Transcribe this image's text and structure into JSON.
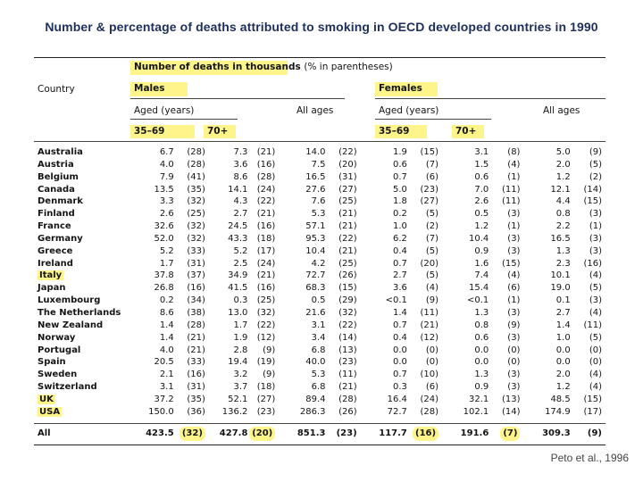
{
  "title": "Number & percentage of deaths attributed to smoking in OECD developed countries in 1990",
  "header": {
    "number_label": "Number of deaths in thousands",
    "pct_note": "(% in parentheses)",
    "country": "Country",
    "males": "Males",
    "females": "Females",
    "aged_years": "Aged (years)",
    "all_ages": "All ages",
    "age_35_69": "35–69",
    "age_70": "70+"
  },
  "columns": [
    "35-69 males",
    "70+ males",
    "All ages males",
    "35-69 females",
    "70+ females",
    "All ages females"
  ],
  "rows": [
    {
      "country": "Australia",
      "v": [
        "6.7",
        "(28)",
        "7.3",
        "(21)",
        "14.0",
        "(22)",
        "1.9",
        "(15)",
        "3.1",
        "(8)",
        "5.0",
        "(9)"
      ]
    },
    {
      "country": "Austria",
      "v": [
        "4.0",
        "(28)",
        "3.6",
        "(16)",
        "7.5",
        "(20)",
        "0.6",
        "(7)",
        "1.5",
        "(4)",
        "2.0",
        "(5)"
      ]
    },
    {
      "country": "Belgium",
      "v": [
        "7.9",
        "(41)",
        "8.6",
        "(28)",
        "16.5",
        "(31)",
        "0.7",
        "(6)",
        "0.6",
        "(1)",
        "1.2",
        "(2)"
      ]
    },
    {
      "country": "Canada",
      "v": [
        "13.5",
        "(35)",
        "14.1",
        "(24)",
        "27.6",
        "(27)",
        "5.0",
        "(23)",
        "7.0",
        "(11)",
        "12.1",
        "(14)"
      ]
    },
    {
      "country": "Denmark",
      "v": [
        "3.3",
        "(32)",
        "4.3",
        "(22)",
        "7.6",
        "(25)",
        "1.8",
        "(27)",
        "2.6",
        "(11)",
        "4.4",
        "(15)"
      ]
    },
    {
      "country": "Finland",
      "v": [
        "2.6",
        "(25)",
        "2.7",
        "(21)",
        "5.3",
        "(21)",
        "0.2",
        "(5)",
        "0.5",
        "(3)",
        "0.8",
        "(3)"
      ]
    },
    {
      "country": "France",
      "v": [
        "32.6",
        "(32)",
        "24.5",
        "(16)",
        "57.1",
        "(21)",
        "1.0",
        "(2)",
        "1.2",
        "(1)",
        "2.2",
        "(1)"
      ]
    },
    {
      "country": "Germany",
      "v": [
        "52.0",
        "(32)",
        "43.3",
        "(18)",
        "95.3",
        "(22)",
        "6.2",
        "(7)",
        "10.4",
        "(3)",
        "16.5",
        "(3)"
      ]
    },
    {
      "country": "Greece",
      "v": [
        "5.2",
        "(33)",
        "5.2",
        "(17)",
        "10.4",
        "(21)",
        "0.4",
        "(5)",
        "0.9",
        "(3)",
        "1.3",
        "(3)"
      ]
    },
    {
      "country": "Ireland",
      "v": [
        "1.7",
        "(31)",
        "2.5",
        "(24)",
        "4.2",
        "(25)",
        "0.7",
        "(20)",
        "1.6",
        "(15)",
        "2.3",
        "(16)"
      ]
    },
    {
      "country": "Italy",
      "v": [
        "37.8",
        "(37)",
        "34.9",
        "(21)",
        "72.7",
        "(26)",
        "2.7",
        "(5)",
        "7.4",
        "(4)",
        "10.1",
        "(4)"
      ]
    },
    {
      "country": "Japan",
      "v": [
        "26.8",
        "(16)",
        "41.5",
        "(16)",
        "68.3",
        "(15)",
        "3.6",
        "(4)",
        "15.4",
        "(6)",
        "19.0",
        "(5)"
      ]
    },
    {
      "country": "Luxembourg",
      "v": [
        "0.2",
        "(34)",
        "0.3",
        "(25)",
        "0.5",
        "(29)",
        "<0.1",
        "(9)",
        "<0.1",
        "(1)",
        "0.1",
        "(3)"
      ]
    },
    {
      "country": "The Netherlands",
      "v": [
        "8.6",
        "(38)",
        "13.0",
        "(32)",
        "21.6",
        "(32)",
        "1.4",
        "(11)",
        "1.3",
        "(3)",
        "2.7",
        "(4)"
      ]
    },
    {
      "country": "New Zealand",
      "v": [
        "1.4",
        "(28)",
        "1.7",
        "(22)",
        "3.1",
        "(22)",
        "0.7",
        "(21)",
        "0.8",
        "(9)",
        "1.4",
        "(11)"
      ]
    },
    {
      "country": "Norway",
      "v": [
        "1.4",
        "(21)",
        "1.9",
        "(12)",
        "3.4",
        "(14)",
        "0.4",
        "(12)",
        "0.6",
        "(3)",
        "1.0",
        "(5)"
      ]
    },
    {
      "country": "Portugal",
      "v": [
        "4.0",
        "(21)",
        "2.8",
        "(9)",
        "6.8",
        "(13)",
        "0.0",
        "(0)",
        "0.0",
        "(0)",
        "0.0",
        "(0)"
      ]
    },
    {
      "country": "Spain",
      "v": [
        "20.5",
        "(33)",
        "19.4",
        "(19)",
        "40.0",
        "(23)",
        "0.0",
        "(0)",
        "0.0",
        "(0)",
        "0.0",
        "(0)"
      ]
    },
    {
      "country": "Sweden",
      "v": [
        "2.1",
        "(16)",
        "3.2",
        "(9)",
        "5.3",
        "(11)",
        "0.7",
        "(10)",
        "1.3",
        "(3)",
        "2.0",
        "(4)"
      ]
    },
    {
      "country": "Switzerland",
      "v": [
        "3.1",
        "(31)",
        "3.7",
        "(18)",
        "6.8",
        "(21)",
        "0.3",
        "(6)",
        "0.9",
        "(3)",
        "1.2",
        "(4)"
      ]
    },
    {
      "country": "UK",
      "v": [
        "37.2",
        "(35)",
        "52.1",
        "(27)",
        "89.4",
        "(28)",
        "16.4",
        "(24)",
        "32.1",
        "(13)",
        "48.5",
        "(15)"
      ]
    },
    {
      "country": "USA",
      "v": [
        "150.0",
        "(36)",
        "136.2",
        "(23)",
        "286.3",
        "(26)",
        "72.7",
        "(28)",
        "102.1",
        "(14)",
        "174.9",
        "(17)"
      ]
    }
  ],
  "highlighted_countries": [
    "Italy",
    "UK",
    "USA"
  ],
  "all_row": {
    "country": "All",
    "v": [
      "423.5",
      "(32)",
      "427.8",
      "(20)",
      "851.3",
      "(23)",
      "117.7",
      "(16)",
      "191.6",
      "(7)",
      "309.3",
      "(9)"
    ]
  },
  "citation": "Peto et al., 1996"
}
